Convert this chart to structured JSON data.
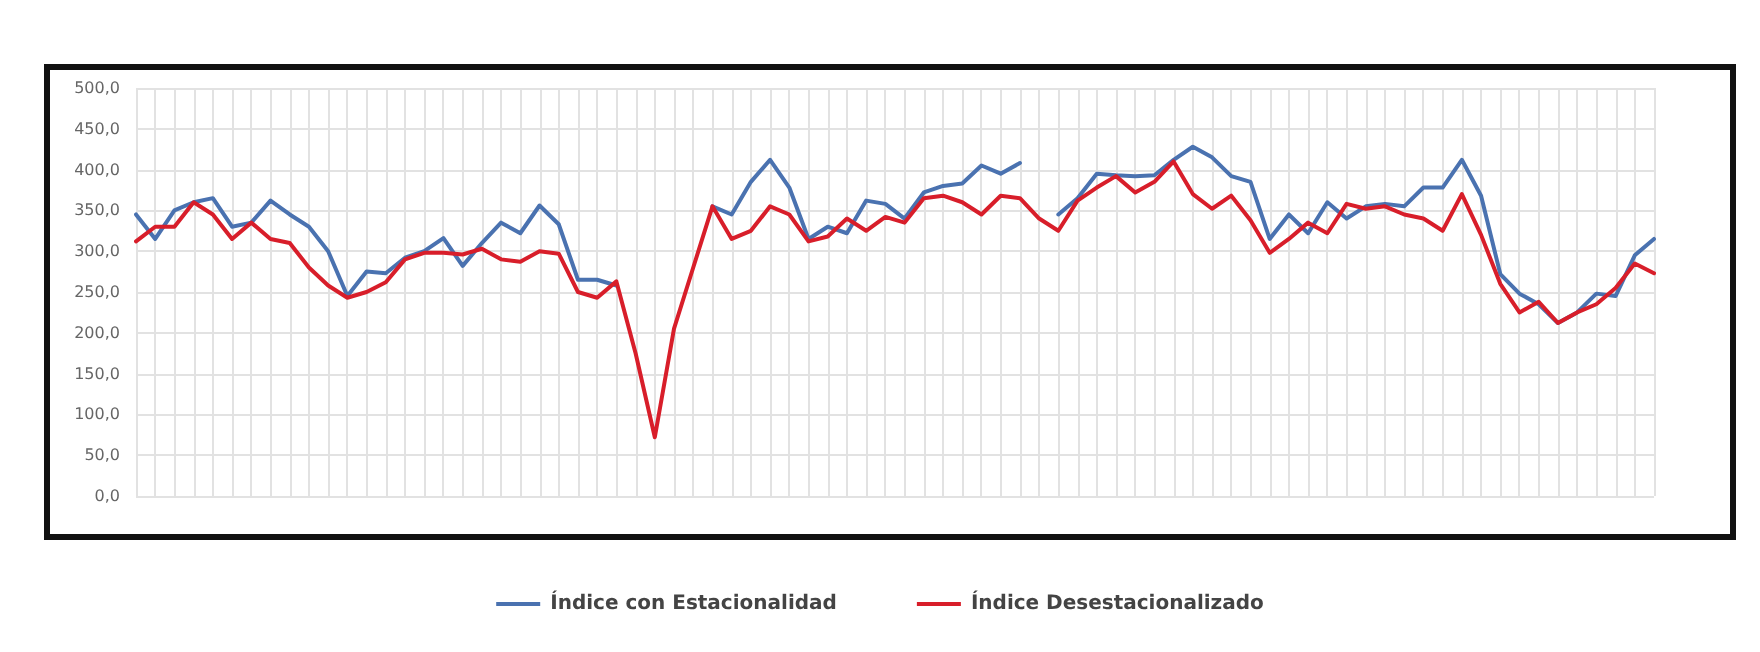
{
  "chart_data": {
    "type": "line",
    "categories": [
      null,
      null,
      null,
      null,
      null,
      null,
      null,
      null,
      null,
      null,
      null,
      null,
      null,
      null,
      null,
      null,
      null,
      null,
      null,
      null,
      null,
      null,
      null,
      null,
      null,
      null,
      null,
      null,
      null,
      null,
      null,
      null,
      null,
      null,
      null,
      null,
      null,
      null,
      null,
      null,
      null,
      null,
      null,
      null,
      null,
      null,
      null,
      null,
      null,
      null,
      null,
      null,
      null,
      null,
      null,
      null,
      null,
      null,
      null,
      null,
      null,
      null,
      null,
      null,
      null,
      null,
      null,
      null,
      null,
      null,
      null,
      null,
      null,
      null,
      null,
      null,
      null,
      null,
      null,
      null
    ],
    "series": [
      {
        "name": "Índice con Estacionalidad",
        "color": "#4a72b0",
        "values": [
          345,
          315,
          350,
          360,
          365,
          330,
          335,
          362,
          345,
          330,
          300,
          245,
          275,
          273,
          292,
          300,
          316,
          282,
          310,
          335,
          322,
          356,
          333,
          265,
          265,
          258,
          null,
          null,
          null,
          null,
          355,
          345,
          385,
          412,
          378,
          315,
          330,
          322,
          362,
          358,
          340,
          372,
          380,
          383,
          405,
          395,
          408,
          null,
          345,
          365,
          395,
          393,
          392,
          393,
          412,
          428,
          415,
          392,
          385,
          315,
          345,
          322,
          360,
          340,
          355,
          358,
          355,
          378,
          378,
          412,
          368,
          272,
          248,
          235,
          212,
          225,
          248,
          245,
          295,
          315
        ]
      },
      {
        "name": "Índice Desestacionalizado",
        "color": "#d81e2a",
        "values": [
          312,
          330,
          330,
          360,
          345,
          315,
          335,
          315,
          310,
          280,
          258,
          243,
          250,
          262,
          290,
          298,
          298,
          296,
          303,
          290,
          287,
          300,
          297,
          250,
          243,
          263,
          175,
          72,
          205,
          280,
          355,
          315,
          325,
          355,
          345,
          312,
          318,
          340,
          325,
          342,
          335,
          365,
          368,
          360,
          345,
          368,
          365,
          340,
          325,
          362,
          378,
          392,
          372,
          385,
          410,
          370,
          352,
          368,
          338,
          298,
          315,
          335,
          322,
          358,
          352,
          355,
          345,
          340,
          325,
          370,
          320,
          260,
          225,
          238,
          212,
          225,
          235,
          255,
          285,
          273
        ]
      }
    ],
    "ylim": [
      0,
      500
    ],
    "yticks": [
      {
        "value": 0,
        "label": "0,0"
      },
      {
        "value": 50,
        "label": "50,0"
      },
      {
        "value": 100,
        "label": "100,0"
      },
      {
        "value": 150,
        "label": "150,0"
      },
      {
        "value": 200,
        "label": "200,0"
      },
      {
        "value": 250,
        "label": "250,0"
      },
      {
        "value": 300,
        "label": "300,0"
      },
      {
        "value": 350,
        "label": "350,0"
      },
      {
        "value": 400,
        "label": "400,0"
      },
      {
        "value": 450,
        "label": "450,0"
      },
      {
        "value": 500,
        "label": "500,0"
      }
    ],
    "grid": true,
    "legend": "bottom",
    "tick_labels": "y",
    "marker": "none",
    "line_style": "solid"
  }
}
